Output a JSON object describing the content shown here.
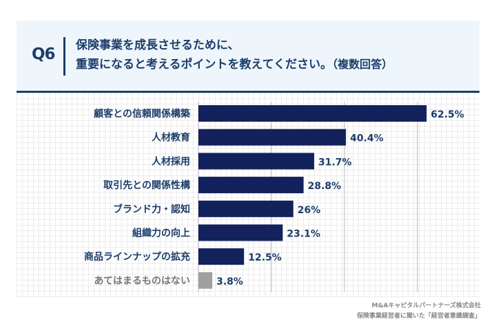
{
  "header": {
    "question_number": "Q6",
    "question_line1": "保険事業を成長させるために、",
    "question_line2": "重要になると考えるポイントを教えてください。",
    "question_note": "（複数回答）"
  },
  "chart_data": {
    "type": "bar",
    "orientation": "horizontal",
    "categories": [
      "顧客との信頼関係構築",
      "人材教育",
      "人材採用",
      "取引先との関係性構",
      "ブランド力・認知",
      "組織力の向上",
      "商品ラインナップの拡充",
      "あてはまるものはない"
    ],
    "values": [
      62.5,
      40.4,
      31.7,
      28.8,
      26,
      23.1,
      12.5,
      3.8
    ],
    "value_labels": [
      "62.5%",
      "40.4%",
      "31.7%",
      "28.8%",
      "26%",
      "23.1%",
      "12.5%",
      "3.8%"
    ],
    "unit": "%",
    "xlim": [
      0,
      70
    ],
    "gridlines": [
      20,
      40,
      60
    ],
    "colors": {
      "bar": "#13215c",
      "bar_none": "#a0a0a0"
    }
  },
  "footer": {
    "source_line1": "M&Aキャピタルパートナーズ株式会社",
    "source_line2": "保険事業経営者に聞いた「経営者意識調査」"
  }
}
